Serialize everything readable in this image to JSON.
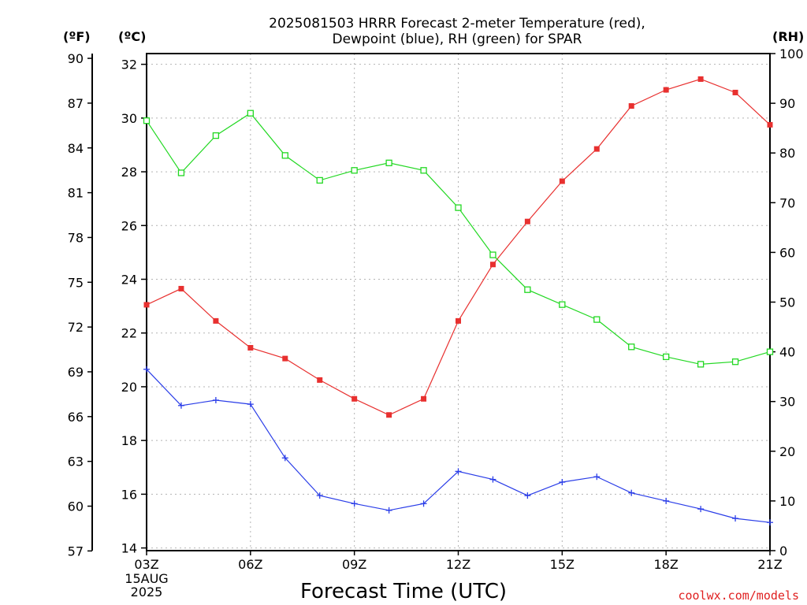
{
  "chart_data": {
    "type": "line",
    "title_lines": [
      "2025081503 HRRR Forecast 2-meter Temperature (red),",
      "Dewpoint (blue), RH (green) for SPAR"
    ],
    "left_axis_labels": [
      "(ºF)",
      "(ºC)"
    ],
    "right_axis_label": "(RH)",
    "xlabel": "Forecast Time (UTC)",
    "credit": "coolwx.com/models",
    "x_hours": [
      3,
      4,
      5,
      6,
      7,
      8,
      9,
      10,
      11,
      12,
      13,
      14,
      15,
      16,
      17,
      18,
      19,
      20,
      21
    ],
    "x_ticks": [
      {
        "hour": 3,
        "label": "03Z",
        "sub": [
          "15AUG",
          "2025"
        ]
      },
      {
        "hour": 6,
        "label": "06Z"
      },
      {
        "hour": 9,
        "label": "09Z"
      },
      {
        "hour": 12,
        "label": "12Z"
      },
      {
        "hour": 15,
        "label": "15Z"
      },
      {
        "hour": 18,
        "label": "18Z"
      },
      {
        "hour": 21,
        "label": "21Z"
      }
    ],
    "xlim": [
      3,
      21
    ],
    "ylim_c": [
      13.9,
      32.4
    ],
    "ylim_rh": [
      0,
      100
    ],
    "c_ticks": [
      14,
      16,
      18,
      20,
      22,
      24,
      26,
      28,
      30,
      32
    ],
    "f_ticks": [
      57,
      60,
      63,
      66,
      69,
      72,
      75,
      78,
      81,
      84,
      87,
      90
    ],
    "rh_ticks": [
      0,
      10,
      20,
      30,
      40,
      50,
      60,
      70,
      80,
      90,
      100
    ],
    "grid": true,
    "series": [
      {
        "name": "Temperature",
        "color": "#e8302f",
        "marker": "filled-square",
        "axis": "celsius",
        "values": [
          23.05,
          23.65,
          22.45,
          21.45,
          21.05,
          20.25,
          19.55,
          18.95,
          19.55,
          22.45,
          24.55,
          26.15,
          27.65,
          28.85,
          30.45,
          31.05,
          31.45,
          30.95,
          29.75
        ]
      },
      {
        "name": "Dewpoint",
        "color": "#2a3de8",
        "marker": "plus",
        "axis": "celsius",
        "values": [
          20.65,
          19.3,
          19.5,
          19.35,
          17.35,
          15.95,
          15.65,
          15.4,
          15.65,
          16.85,
          16.55,
          15.95,
          16.45,
          16.65,
          16.05,
          15.75,
          15.45,
          15.1,
          14.95
        ]
      },
      {
        "name": "RH",
        "color": "#22d822",
        "marker": "open-square",
        "axis": "rh",
        "values": [
          86.5,
          76,
          83.5,
          88,
          79.5,
          74.5,
          76.5,
          78,
          76.5,
          69,
          59.5,
          52.5,
          49.5,
          46.5,
          41,
          39,
          37.5,
          38,
          40
        ]
      }
    ]
  }
}
